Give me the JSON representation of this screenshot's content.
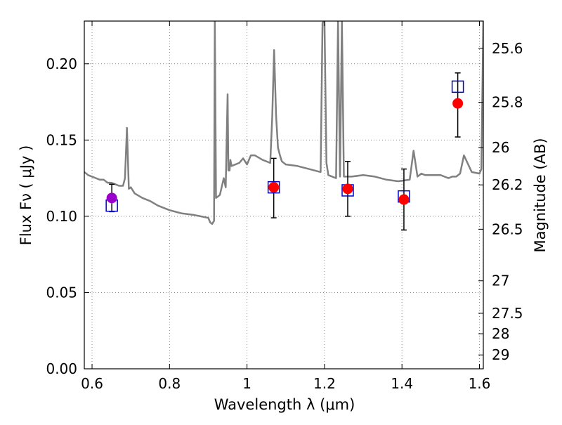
{
  "chart_data": {
    "type": "scatter",
    "xlabel": "Wavelength  λ (μm)",
    "ylabel": "Flux  Fν  ( μJy )",
    "y2label": "Magnitude (AB)",
    "xlim": [
      0.58,
      1.61
    ],
    "ylim": [
      0.0,
      0.228
    ],
    "grid": true,
    "xticks": [
      0.6,
      0.8,
      1.0,
      1.2,
      1.4,
      1.6
    ],
    "xticklabels": [
      "0.6",
      "0.8",
      "1",
      "1.2",
      "1.4",
      "1.6"
    ],
    "yticks": [
      0.0,
      0.05,
      0.1,
      0.15,
      0.2
    ],
    "yticklabels": [
      "0.00",
      "0.05",
      "0.10",
      "0.15",
      "0.20"
    ],
    "y2ticks": [
      {
        "label": "25.6",
        "flux": 0.2101
      },
      {
        "label": "25.8",
        "flux": 0.1748
      },
      {
        "label": "26",
        "flux": 0.145
      },
      {
        "label": "26.2",
        "flux": 0.1206
      },
      {
        "label": "26.5",
        "flux": 0.0915
      },
      {
        "label": "27",
        "flux": 0.0577
      },
      {
        "label": "27.5",
        "flux": 0.0364
      },
      {
        "label": "28",
        "flux": 0.023
      },
      {
        "label": "29",
        "flux": 0.0091
      }
    ],
    "colors": {
      "sed": "#808080",
      "model_marker": "#0000cc",
      "obs_marker": "#ff0000",
      "first_marker": "#9900cc",
      "errorbar": "#000000",
      "grid": "#888888"
    },
    "series": [
      {
        "type": "line",
        "x": [
          0.58,
          0.59,
          0.6,
          0.61,
          0.62,
          0.63,
          0.64,
          0.65,
          0.66,
          0.67,
          0.68,
          0.685,
          0.69,
          0.695,
          0.7,
          0.71,
          0.73,
          0.75,
          0.77,
          0.8,
          0.83,
          0.86,
          0.88,
          0.9,
          0.905,
          0.91,
          0.915,
          0.917,
          0.92,
          0.93,
          0.94,
          0.945,
          0.95,
          0.952,
          0.955,
          0.957,
          0.96,
          0.98,
          0.99,
          1.0,
          1.01,
          1.02,
          1.04,
          1.06,
          1.065,
          1.07,
          1.075,
          1.08,
          1.085,
          1.09,
          1.1,
          1.13,
          1.16,
          1.19,
          1.195,
          1.2,
          1.205,
          1.21,
          1.22,
          1.23,
          1.235,
          1.24,
          1.245,
          1.25,
          1.27,
          1.3,
          1.33,
          1.36,
          1.39,
          1.42,
          1.43,
          1.44,
          1.45,
          1.46,
          1.5,
          1.52,
          1.53,
          1.535,
          1.54,
          1.55,
          1.56,
          1.58,
          1.6,
          1.605,
          1.61
        ],
        "y": [
          0.129,
          0.127,
          0.126,
          0.125,
          0.124,
          0.124,
          0.122,
          0.122,
          0.121,
          0.12,
          0.12,
          0.125,
          0.158,
          0.118,
          0.119,
          0.115,
          0.112,
          0.11,
          0.107,
          0.104,
          0.102,
          0.101,
          0.1,
          0.099,
          0.096,
          0.095,
          0.097,
          0.228,
          0.112,
          0.114,
          0.125,
          0.119,
          0.18,
          0.13,
          0.13,
          0.137,
          0.133,
          0.135,
          0.138,
          0.134,
          0.14,
          0.14,
          0.137,
          0.135,
          0.165,
          0.209,
          0.166,
          0.145,
          0.14,
          0.136,
          0.134,
          0.133,
          0.131,
          0.129,
          0.227,
          0.228,
          0.135,
          0.127,
          0.126,
          0.125,
          0.228,
          0.126,
          0.228,
          0.126,
          0.126,
          0.127,
          0.126,
          0.124,
          0.123,
          0.124,
          0.143,
          0.126,
          0.128,
          0.127,
          0.127,
          0.125,
          0.126,
          0.126,
          0.126,
          0.128,
          0.14,
          0.129,
          0.128,
          0.131,
          0.228
        ]
      },
      {
        "type": "points",
        "x": [
          0.651,
          1.069,
          1.26,
          1.405,
          1.544
        ],
        "model": [
          0.107,
          0.119,
          0.117,
          0.113,
          0.185
        ],
        "observed": [
          0.112,
          0.119,
          0.118,
          0.111,
          0.174
        ],
        "err_low": [
          0.103,
          0.099,
          0.1,
          0.091,
          0.152
        ],
        "err_high": [
          0.121,
          0.138,
          0.136,
          0.131,
          0.194
        ]
      }
    ]
  }
}
